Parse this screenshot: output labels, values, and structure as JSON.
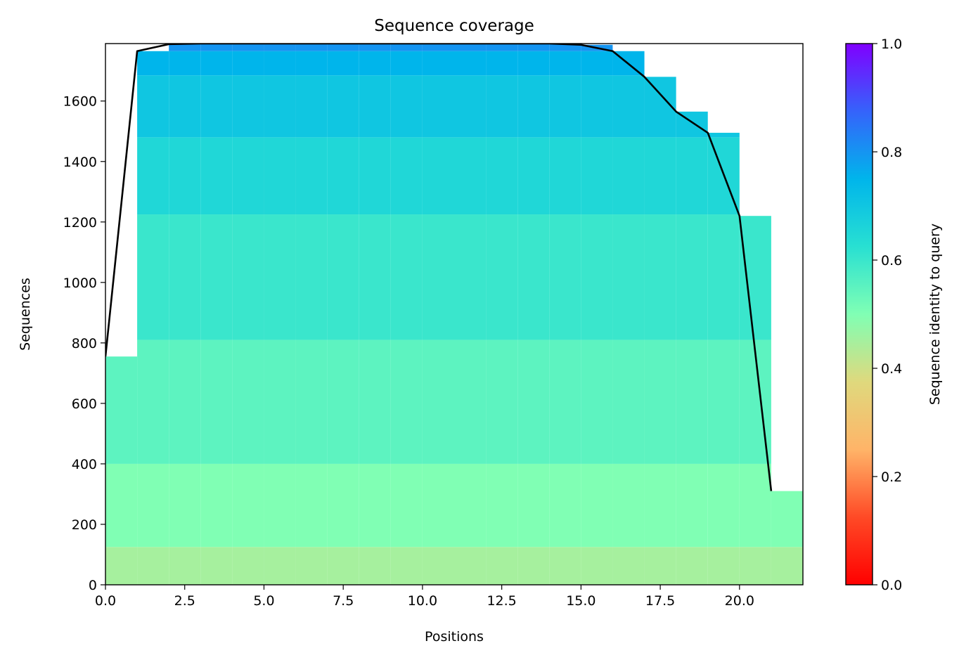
{
  "chart_data": {
    "type": "heatmap",
    "title": "Sequence coverage",
    "xlabel": "Positions",
    "ylabel": "Sequences",
    "xlim": [
      0,
      22
    ],
    "ylim": [
      0,
      1790
    ],
    "x_ticks": [
      0.0,
      2.5,
      5.0,
      7.5,
      10.0,
      12.5,
      15.0,
      17.5,
      20.0
    ],
    "x_tick_labels": [
      "0.0",
      "2.5",
      "5.0",
      "7.5",
      "10.0",
      "12.5",
      "15.0",
      "17.5",
      "20.0"
    ],
    "y_ticks": [
      0,
      200,
      400,
      600,
      800,
      1000,
      1200,
      1400,
      1600
    ],
    "y_tick_labels": [
      "0",
      "200",
      "400",
      "600",
      "800",
      "1000",
      "1200",
      "1400",
      "1600"
    ],
    "colorbar": {
      "label": "Sequence identity to query",
      "colormap": "rainbow_r",
      "range": [
        0.0,
        1.0
      ],
      "ticks": [
        0.0,
        0.2,
        0.4,
        0.6,
        0.8,
        1.0
      ],
      "tick_labels": [
        "0.0",
        "0.2",
        "0.4",
        "0.6",
        "0.8",
        "1.0"
      ]
    },
    "identity_bands": [
      {
        "from": 0,
        "to": 125,
        "identity": 0.45
      },
      {
        "from": 125,
        "to": 400,
        "identity": 0.5
      },
      {
        "from": 400,
        "to": 810,
        "identity": 0.55
      },
      {
        "from": 810,
        "to": 1225,
        "identity": 0.6
      },
      {
        "from": 1225,
        "to": 1480,
        "identity": 0.65
      },
      {
        "from": 1480,
        "to": 1685,
        "identity": 0.7
      },
      {
        "from": 1685,
        "to": 1765,
        "identity": 0.75
      },
      {
        "from": 1765,
        "to": 1790,
        "identity": 0.8
      }
    ],
    "series": [
      {
        "type": "line",
        "color": "#000000",
        "x": [
          0,
          1,
          2,
          3,
          4,
          5,
          6,
          7,
          8,
          9,
          10,
          11,
          12,
          13,
          14,
          15,
          16,
          17,
          18,
          19,
          20,
          21
        ],
        "y": [
          755,
          1765,
          1788,
          1790,
          1790,
          1790,
          1790,
          1790,
          1790,
          1790,
          1790,
          1790,
          1790,
          1790,
          1790,
          1786,
          1765,
          1680,
          1565,
          1495,
          1220,
          310
        ]
      }
    ]
  }
}
